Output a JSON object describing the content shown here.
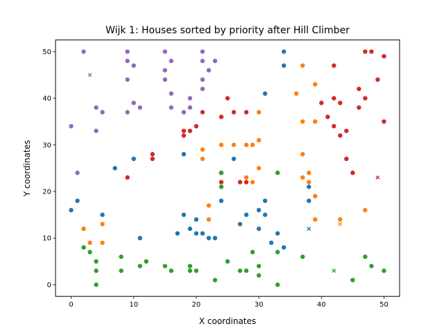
{
  "chart_data": {
    "type": "scatter",
    "title": "Wijk 1: Houses sorted by priority after Hill Climber",
    "xlabel": "X coordinates",
    "ylabel": "Y coordinates",
    "xlim": [
      -2.5,
      52.5
    ],
    "ylim": [
      -2.5,
      52.5
    ],
    "xticks": [
      0,
      10,
      20,
      30,
      40,
      50
    ],
    "yticks": [
      0,
      10,
      20,
      30,
      40,
      50
    ],
    "grid": false,
    "series": [
      {
        "color": "#9467bd",
        "houses": [
          [
            0,
            34
          ],
          [
            1,
            24
          ],
          [
            2,
            50
          ],
          [
            4,
            38
          ],
          [
            4,
            33
          ],
          [
            5,
            37
          ],
          [
            9,
            50
          ],
          [
            9,
            48
          ],
          [
            9,
            44
          ],
          [
            9,
            37
          ],
          [
            10,
            47
          ],
          [
            10,
            39
          ],
          [
            11,
            38
          ],
          [
            15,
            50
          ],
          [
            15,
            46
          ],
          [
            15,
            44
          ],
          [
            16,
            48
          ],
          [
            16,
            41
          ],
          [
            16,
            38
          ],
          [
            18,
            37
          ],
          [
            19,
            40
          ],
          [
            19,
            38
          ],
          [
            21,
            50
          ],
          [
            21,
            48
          ],
          [
            21,
            44
          ],
          [
            21,
            42
          ],
          [
            22,
            46
          ],
          [
            23,
            48
          ]
        ],
        "batteries": [
          [
            3,
            45
          ]
        ]
      },
      {
        "color": "#d62728",
        "houses": [
          [
            9,
            23
          ],
          [
            13,
            28
          ],
          [
            13,
            27
          ],
          [
            18,
            33
          ],
          [
            18,
            32
          ],
          [
            19,
            33
          ],
          [
            20,
            34
          ],
          [
            21,
            37
          ],
          [
            24,
            36
          ],
          [
            24,
            24
          ],
          [
            24,
            22
          ],
          [
            25,
            40
          ],
          [
            26,
            37
          ],
          [
            27,
            22
          ],
          [
            28,
            37
          ],
          [
            28,
            22
          ],
          [
            42,
            47
          ],
          [
            40,
            39
          ],
          [
            41,
            36
          ],
          [
            42,
            40
          ],
          [
            42,
            34
          ],
          [
            43,
            39
          ],
          [
            43,
            32
          ],
          [
            44,
            33
          ],
          [
            44,
            27
          ],
          [
            45,
            24
          ],
          [
            46,
            42
          ],
          [
            46,
            38
          ],
          [
            47,
            50
          ],
          [
            47,
            40
          ],
          [
            48,
            50
          ],
          [
            49,
            44
          ],
          [
            50,
            49
          ],
          [
            50,
            35
          ]
        ],
        "batteries": [
          [
            49,
            23
          ]
        ]
      },
      {
        "color": "#1f77b4",
        "houses": [
          [
            0,
            16
          ],
          [
            1,
            18
          ],
          [
            5,
            15
          ],
          [
            7,
            25
          ],
          [
            10,
            27
          ],
          [
            11,
            10
          ],
          [
            17,
            11
          ],
          [
            18,
            28
          ],
          [
            18,
            15
          ],
          [
            19,
            12
          ],
          [
            20,
            14
          ],
          [
            20,
            11
          ],
          [
            21,
            11
          ],
          [
            22,
            10
          ],
          [
            23,
            10
          ],
          [
            24,
            18
          ],
          [
            26,
            27
          ],
          [
            27,
            13
          ],
          [
            28,
            15
          ],
          [
            30,
            16
          ],
          [
            30,
            12
          ],
          [
            31,
            18
          ],
          [
            31,
            15
          ],
          [
            31,
            41
          ],
          [
            32,
            9
          ],
          [
            33,
            11
          ],
          [
            34,
            50
          ],
          [
            34,
            47
          ],
          [
            34,
            8
          ],
          [
            38,
            21
          ],
          [
            38,
            18
          ]
        ],
        "batteries": [
          [
            38,
            12
          ]
        ]
      },
      {
        "color": "#ff7f0e",
        "houses": [
          [
            2,
            12
          ],
          [
            3,
            9
          ],
          [
            5,
            13
          ],
          [
            5,
            9
          ],
          [
            21,
            29
          ],
          [
            21,
            27
          ],
          [
            22,
            17
          ],
          [
            22,
            14
          ],
          [
            24,
            30
          ],
          [
            26,
            30
          ],
          [
            28,
            30
          ],
          [
            29,
            30
          ],
          [
            30,
            37
          ],
          [
            30,
            31
          ],
          [
            30,
            25
          ],
          [
            28,
            23
          ],
          [
            29,
            22
          ],
          [
            36,
            41
          ],
          [
            37,
            47
          ],
          [
            37,
            35
          ],
          [
            37,
            28
          ],
          [
            37,
            23
          ],
          [
            38,
            24
          ],
          [
            38,
            22
          ],
          [
            39,
            43
          ],
          [
            39,
            35
          ],
          [
            39,
            19
          ],
          [
            39,
            14
          ],
          [
            43,
            14
          ],
          [
            47,
            16
          ]
        ],
        "batteries": [
          [
            43,
            13
          ]
        ]
      },
      {
        "color": "#2ca02c",
        "houses": [
          [
            2,
            8
          ],
          [
            3,
            7
          ],
          [
            4,
            5
          ],
          [
            4,
            3
          ],
          [
            4,
            0
          ],
          [
            8,
            6
          ],
          [
            8,
            3
          ],
          [
            11,
            4
          ],
          [
            12,
            5
          ],
          [
            15,
            4
          ],
          [
            16,
            3
          ],
          [
            19,
            4
          ],
          [
            19,
            3
          ],
          [
            20,
            3
          ],
          [
            23,
            1
          ],
          [
            24,
            24
          ],
          [
            24,
            21
          ],
          [
            25,
            5
          ],
          [
            27,
            3
          ],
          [
            28,
            3
          ],
          [
            29,
            7
          ],
          [
            30,
            4
          ],
          [
            30,
            2
          ],
          [
            33,
            24
          ],
          [
            33,
            7
          ],
          [
            33,
            0
          ],
          [
            37,
            6
          ],
          [
            45,
            1
          ],
          [
            47,
            6
          ],
          [
            48,
            4
          ],
          [
            50,
            3
          ]
        ],
        "batteries": [
          [
            42,
            3
          ]
        ]
      }
    ]
  }
}
